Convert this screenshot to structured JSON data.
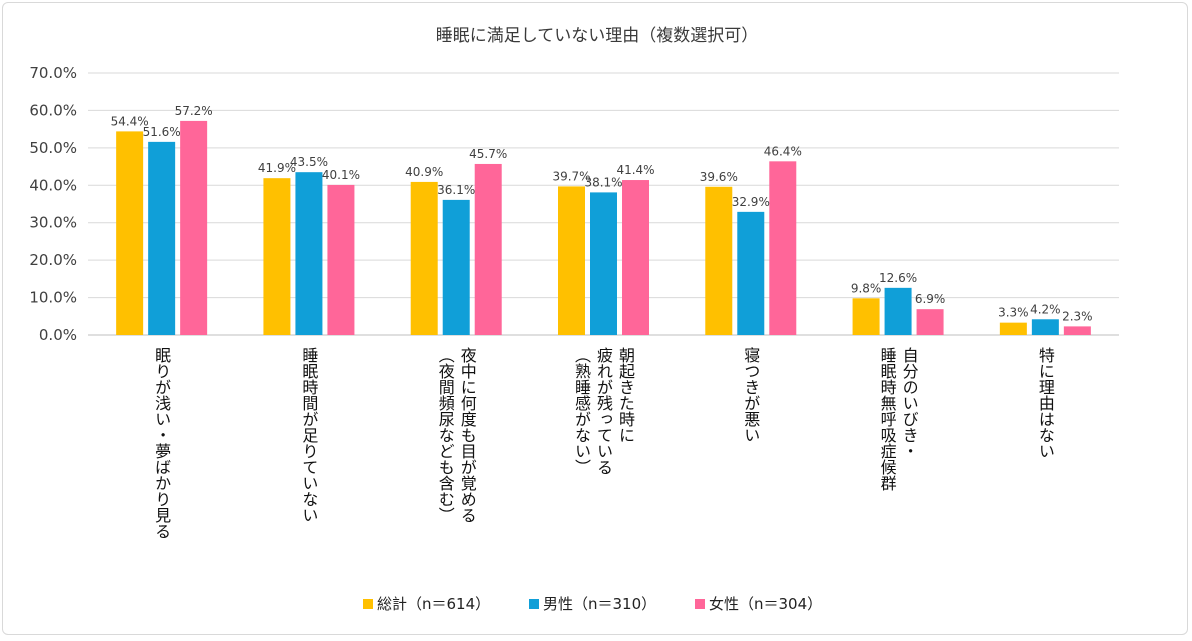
{
  "chart_data": {
    "type": "bar",
    "title": "睡眠に満足していない理由（複数選択可）",
    "ylim": [
      0,
      70
    ],
    "yticks": [
      "0.0%",
      "10.0%",
      "20.0%",
      "30.0%",
      "40.0%",
      "50.0%",
      "60.0%",
      "70.0%"
    ],
    "ytick_values": [
      0,
      10,
      20,
      30,
      40,
      50,
      60,
      70
    ],
    "grid": true,
    "legend_position": "bottom",
    "categories": [
      [
        "眠りが浅い・夢ばかり見る"
      ],
      [
        "睡眠時間が足りていない"
      ],
      [
        "夜中に何度も目が覚める",
        "（夜間頻尿なども含む）"
      ],
      [
        "朝起きた時に",
        "疲れが残っている",
        "（熟睡感がない）"
      ],
      [
        "寝つきが悪い"
      ],
      [
        "自分のいびき・",
        "睡眠時無呼吸症候群"
      ],
      [
        "特に理由はない"
      ]
    ],
    "series": [
      {
        "name": "総計（n＝614）",
        "color": "#FFC000",
        "values": [
          54.4,
          41.9,
          40.9,
          39.7,
          39.6,
          9.8,
          3.3
        ],
        "labels": [
          "54.4%",
          "41.9%",
          "40.9%",
          "39.7%",
          "39.6%",
          "9.8%",
          "3.3%"
        ]
      },
      {
        "name": "男性（n＝310）",
        "color": "#109FD8",
        "values": [
          51.6,
          43.5,
          36.1,
          38.1,
          32.9,
          12.6,
          4.2
        ],
        "labels": [
          "51.6%",
          "43.5%",
          "36.1%",
          "38.1%",
          "32.9%",
          "12.6%",
          "4.2%"
        ]
      },
      {
        "name": "女性（n＝304）",
        "color": "#FF6699",
        "values": [
          57.2,
          40.1,
          45.7,
          41.4,
          46.4,
          6.9,
          2.3
        ],
        "labels": [
          "57.2%",
          "40.1%",
          "45.7%",
          "41.4%",
          "46.4%",
          "6.9%",
          "2.3%"
        ]
      }
    ]
  }
}
